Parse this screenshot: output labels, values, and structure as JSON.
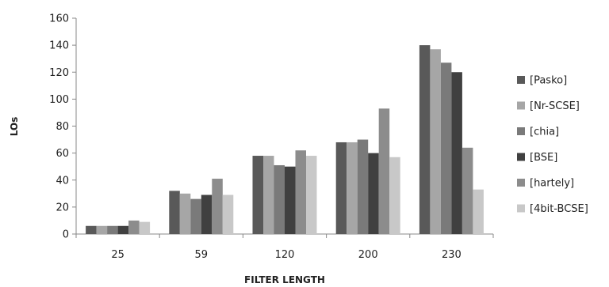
{
  "chart_data": {
    "type": "bar",
    "title": "",
    "xlabel": "FILTER LENGTH",
    "ylabel": "LOs",
    "ylim": [
      0,
      160
    ],
    "yticks": [
      0,
      20,
      40,
      60,
      80,
      100,
      120,
      140,
      160
    ],
    "grid": false,
    "legend_position": "right",
    "categories": [
      "25",
      "59",
      "120",
      "200",
      "230"
    ],
    "series": [
      {
        "name": "[Pasko]",
        "color": "#595959",
        "values": [
          6,
          32,
          58,
          68,
          140
        ]
      },
      {
        "name": "[Nr-SCSE]",
        "color": "#a6a6a6",
        "values": [
          6,
          30,
          58,
          68,
          137
        ]
      },
      {
        "name": "[chia]",
        "color": "#7a7a7a",
        "values": [
          6,
          26,
          51,
          70,
          127
        ]
      },
      {
        "name": "[BSE]",
        "color": "#404040",
        "values": [
          6,
          29,
          50,
          60,
          120
        ]
      },
      {
        "name": "[hartely]",
        "color": "#8c8c8c",
        "values": [
          10,
          41,
          62,
          93,
          64
        ]
      },
      {
        "name": "[4bit-BCSE]",
        "color": "#c8c8c8",
        "values": [
          9,
          29,
          58,
          57,
          33
        ]
      }
    ]
  }
}
